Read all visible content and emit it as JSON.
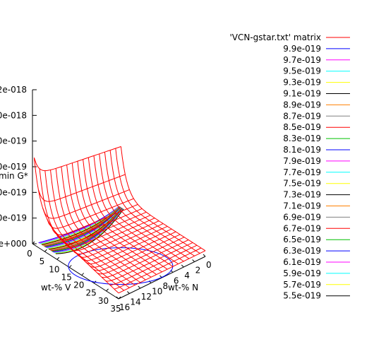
{
  "chart_data": {
    "type": "surface",
    "title": "",
    "xlabel": "wt-% V",
    "ylabel": "wt-% N",
    "zlabel": "min G*",
    "x_ticks": [
      "0",
      "5",
      "10",
      "15",
      "20",
      "25",
      "30",
      "35"
    ],
    "y_ticks": [
      "0",
      "2",
      "4",
      "6",
      "8",
      "10",
      "12",
      "14",
      "16"
    ],
    "z_ticks": [
      "e+000",
      "0e-019",
      "0e-019",
      "0e-019",
      "0e-019",
      "0e-018",
      "2e-018"
    ],
    "xlim": [
      0,
      35
    ],
    "ylim": [
      0,
      16
    ],
    "legend_position": "right",
    "series": [
      {
        "name": "'VCN-gstar.txt' matrix",
        "color": "#ff0000"
      },
      {
        "name": "9.9e-019",
        "color": "#0000ff"
      },
      {
        "name": "9.7e-019",
        "color": "#ff00ff"
      },
      {
        "name": "9.5e-019",
        "color": "#00ffff"
      },
      {
        "name": "9.3e-019",
        "color": "#ffff00"
      },
      {
        "name": "9.1e-019",
        "color": "#000000"
      },
      {
        "name": "8.9e-019",
        "color": "#ff8000"
      },
      {
        "name": "8.7e-019",
        "color": "#808080"
      },
      {
        "name": "8.5e-019",
        "color": "#ff0000"
      },
      {
        "name": "8.3e-019",
        "color": "#00c000"
      },
      {
        "name": "8.1e-019",
        "color": "#0000ff"
      },
      {
        "name": "7.9e-019",
        "color": "#ff00ff"
      },
      {
        "name": "7.7e-019",
        "color": "#00ffff"
      },
      {
        "name": "7.5e-019",
        "color": "#ffff00"
      },
      {
        "name": "7.3e-019",
        "color": "#000000"
      },
      {
        "name": "7.1e-019",
        "color": "#ff8000"
      },
      {
        "name": "6.9e-019",
        "color": "#808080"
      },
      {
        "name": "6.7e-019",
        "color": "#ff0000"
      },
      {
        "name": "6.5e-019",
        "color": "#00c000"
      },
      {
        "name": "6.3e-019",
        "color": "#0000ff"
      },
      {
        "name": "6.1e-019",
        "color": "#ff00ff"
      },
      {
        "name": "5.9e-019",
        "color": "#00ffff"
      },
      {
        "name": "5.7e-019",
        "color": "#ffff00"
      },
      {
        "name": "5.5e-019",
        "color": "#000000"
      }
    ]
  }
}
